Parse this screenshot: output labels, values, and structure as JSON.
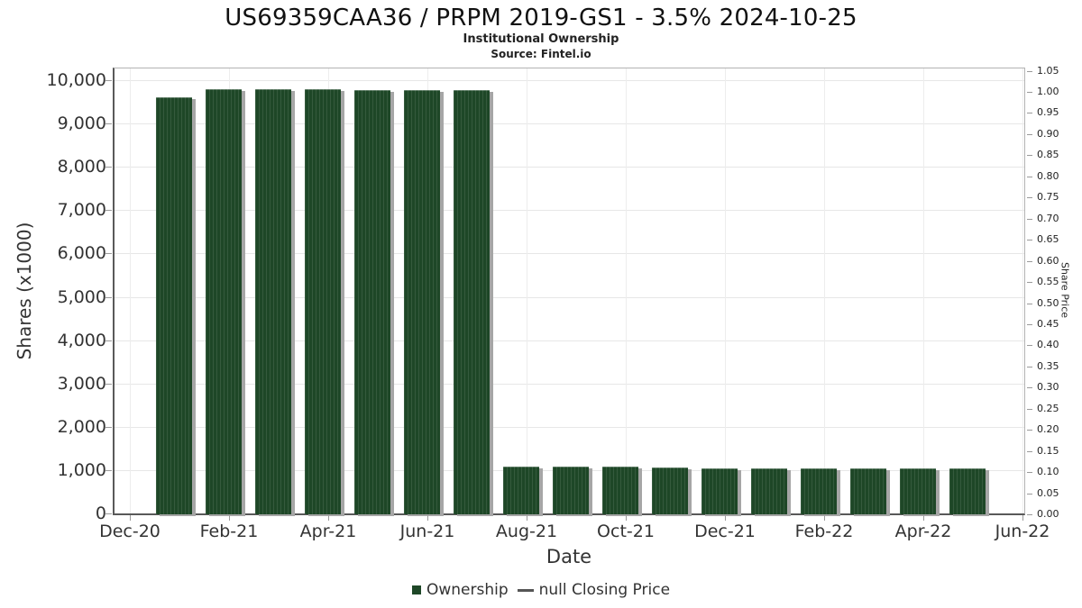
{
  "title": "US69359CAA36 / PRPM 2019-GS1 - 3.5% 2024-10-25",
  "subtitle": "Institutional Ownership",
  "source": "Source: Fintel.io",
  "legend": {
    "ownership_label": "Ownership",
    "price_label": "null Closing Price"
  },
  "colors": {
    "bar": "#1e4727",
    "bar_stripe": "rgba(255,255,255,0.10)",
    "bar_shadow": "#a6a6a6",
    "grid": "#e7e7e7",
    "axis_dark": "#595959",
    "axis_light": "#b3b3b3",
    "tick": "#9a9a9a",
    "text": "#333333"
  },
  "chart_data": {
    "type": "bar",
    "title": "US69359CAA36 / PRPM 2019-GS1 - 3.5% 2024-10-25",
    "subtitle": "Institutional Ownership",
    "source": "Source: Fintel.io",
    "xlabel": "Date",
    "ylabel_left": "Shares (x1000)",
    "ylabel_right": "Share Price",
    "categories": [
      "Jan-21",
      "Feb-21",
      "Mar-21",
      "Apr-21",
      "May-21",
      "Jun-21",
      "Jul-21",
      "Aug-21",
      "Sep-21",
      "Oct-21",
      "Nov-21",
      "Dec-21",
      "Jan-22",
      "Feb-22",
      "Mar-22",
      "Apr-22",
      "May-22"
    ],
    "series": [
      {
        "name": "Ownership",
        "type": "bar",
        "axis": "left",
        "values": [
          9615,
          9795,
          9790,
          9790,
          9780,
          9775,
          9775,
          1085,
          1075,
          1075,
          1050,
          1040,
          1040,
          1035,
          1035,
          1035,
          1035
        ]
      },
      {
        "name": "null Closing Price",
        "type": "line",
        "axis": "right",
        "values": []
      }
    ],
    "x_tick_labels": [
      "Dec-20",
      "Feb-21",
      "Apr-21",
      "Jun-21",
      "Aug-21",
      "Oct-21",
      "Dec-21",
      "Feb-22",
      "Apr-22",
      "Jun-22"
    ],
    "x_months_per_tick": 2,
    "y_left": {
      "min": 0,
      "max": 10000,
      "step": 1000
    },
    "y_right": {
      "min": 0.0,
      "max": 1.05,
      "step": 0.05
    },
    "grid": true,
    "legend_position": "bottom"
  }
}
